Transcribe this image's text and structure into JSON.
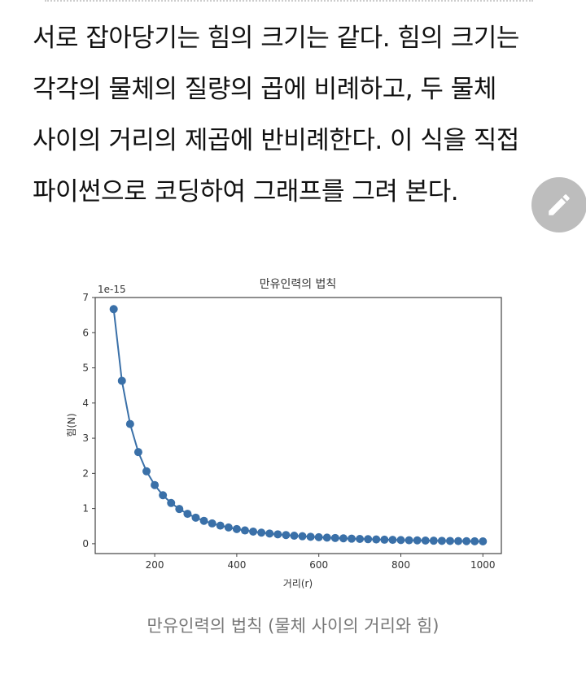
{
  "article": {
    "lines": [
      "서로 잡아당기는 힘의 크기는 같다. 힘의 크기는",
      "각각의 물체의 질량의 곱에 비례하고, 두 물체",
      "사이의 거리의 제곱에 반비례한다. 이 식을 직접",
      "파이썬으로 코딩하여 그래프를 그려 본다."
    ],
    "edit_icon": "pencil-icon",
    "caption": "만유인력의 법칙 (물체 사이의 거리와 힘)"
  },
  "chart_data": {
    "type": "line",
    "title": "만유인력의 법칙",
    "xlabel": "거리(r)",
    "ylabel": "힘(N)",
    "y_offset_label": "1e-15",
    "xlim": [
      55,
      1045
    ],
    "ylim": [
      -0.28,
      7
    ],
    "xticks": [
      200,
      400,
      600,
      800,
      1000
    ],
    "yticks": [
      0,
      1,
      2,
      3,
      4,
      5,
      6,
      7
    ],
    "grid": false,
    "marker": "circle",
    "color": "#3a70a8",
    "x": [
      100,
      120,
      140,
      160,
      180,
      200,
      220,
      240,
      260,
      280,
      300,
      320,
      340,
      360,
      380,
      400,
      420,
      440,
      460,
      480,
      500,
      520,
      540,
      560,
      580,
      600,
      620,
      640,
      660,
      680,
      700,
      720,
      740,
      760,
      780,
      800,
      820,
      840,
      860,
      880,
      900,
      920,
      940,
      960,
      980,
      1000
    ],
    "y": [
      6.67,
      4.632,
      3.403,
      2.605,
      2.059,
      1.668,
      1.378,
      1.158,
      0.987,
      0.851,
      0.741,
      0.651,
      0.577,
      0.515,
      0.462,
      0.417,
      0.378,
      0.345,
      0.315,
      0.29,
      0.267,
      0.247,
      0.229,
      0.213,
      0.198,
      0.185,
      0.174,
      0.163,
      0.153,
      0.144,
      0.136,
      0.129,
      0.122,
      0.115,
      0.11,
      0.104,
      0.099,
      0.095,
      0.09,
      0.086,
      0.082,
      0.079,
      0.075,
      0.072,
      0.069,
      0.067
    ]
  }
}
